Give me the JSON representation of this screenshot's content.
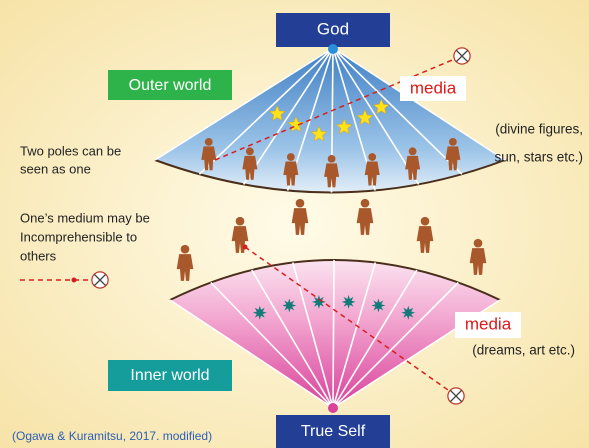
{
  "top_label": "God",
  "bottom_label": "True  Self",
  "outer_world": "Outer world",
  "inner_world": "Inner world",
  "upper_media": {
    "label": "media",
    "note_lines": [
      "(divine figures,",
      "sun, stars etc.)"
    ]
  },
  "lower_media": {
    "label": "media",
    "note": "(dreams, art etc.)"
  },
  "left_notes": [
    [
      "Two poles can be",
      "seen as one"
    ],
    [
      "One’s medium may be",
      "Incomprehensible to",
      "others"
    ]
  ],
  "citation": "(Ogawa & Kuramitsu, 2017. modified)"
}
